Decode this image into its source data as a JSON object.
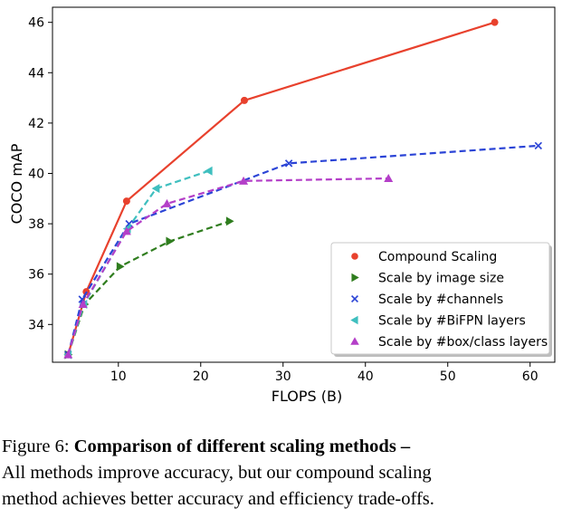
{
  "chart_data": {
    "type": "line",
    "xlabel": "FLOPS (B)",
    "ylabel": "COCO mAP",
    "xlim": [
      2,
      63
    ],
    "ylim": [
      32.5,
      46.6
    ],
    "xticks": [
      10,
      20,
      30,
      40,
      50,
      60
    ],
    "yticks": [
      34,
      36,
      38,
      40,
      42,
      44,
      46
    ],
    "grid": false,
    "legend_position": "lower-right",
    "series": [
      {
        "name": "Compound Scaling",
        "color": "#e8412d",
        "marker": "circle",
        "dashed": false,
        "x": [
          3.9,
          6.1,
          11.0,
          25.3,
          55.7
        ],
        "y": [
          32.8,
          35.3,
          38.9,
          42.9,
          46.0
        ]
      },
      {
        "name": "Scale by image size",
        "color": "#2f7d1e",
        "marker": "triangle-right",
        "dashed": true,
        "x": [
          3.9,
          5.9,
          10.2,
          16.2,
          23.5
        ],
        "y": [
          32.8,
          34.8,
          36.3,
          37.3,
          38.1
        ]
      },
      {
        "name": "Scale by #channels",
        "color": "#2b44d6",
        "marker": "x",
        "dashed": true,
        "x": [
          3.9,
          5.6,
          11.3,
          30.7,
          61.0
        ],
        "y": [
          32.8,
          35.0,
          38.0,
          40.4,
          41.1
        ]
      },
      {
        "name": "Scale by #BiFPN layers",
        "color": "#3fbfbf",
        "marker": "triangle-left",
        "dashed": true,
        "x": [
          3.9,
          5.8,
          11.1,
          14.6,
          21.0
        ],
        "y": [
          32.8,
          34.8,
          37.8,
          39.4,
          40.1
        ]
      },
      {
        "name": "Scale by #box/class layers",
        "color": "#b43fc8",
        "marker": "triangle-up",
        "dashed": true,
        "x": [
          3.9,
          5.7,
          11.0,
          15.9,
          25.2,
          42.8
        ],
        "y": [
          32.8,
          34.8,
          37.7,
          38.8,
          39.7,
          39.8
        ]
      }
    ]
  },
  "caption": {
    "line1_prefix": "Figure 6:  ",
    "line1_bold": "Comparison of different scaling methods –",
    "line2": "All methods improve accuracy, but our compound scaling",
    "line3": "method achieves better accuracy and efficiency trade-offs."
  }
}
